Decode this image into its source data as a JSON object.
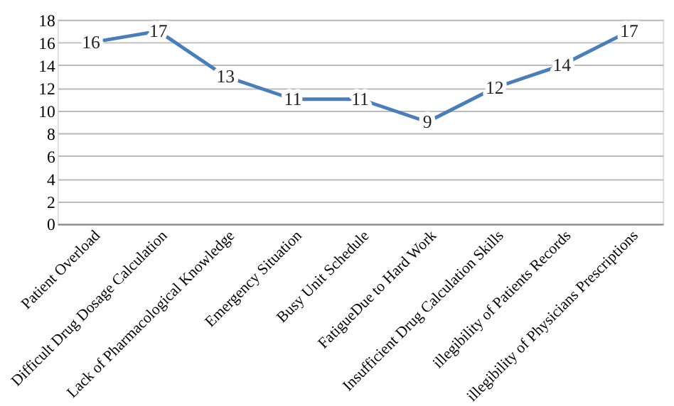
{
  "chart_data": {
    "type": "line",
    "categories": [
      "Patient Overload",
      "Difficult Drug Dosage Calculation",
      "Lack of Pharmacological Knowledge",
      "Emergency Situation",
      "Busy Unit Schedule",
      "FatigueDue to Hard Work",
      "Insufficient Drug Calculation Skills",
      "illegibility of Patients Records",
      "illegibility of Physicians Prescriptions"
    ],
    "series": [
      {
        "color": "#4a7ebb",
        "values": [
          16,
          17,
          13,
          11,
          11,
          9,
          12,
          14,
          17
        ]
      }
    ],
    "ylim": [
      0,
      18
    ],
    "yticks": [
      0,
      2,
      4,
      6,
      8,
      10,
      12,
      14,
      16,
      18
    ],
    "grid": "y",
    "data_labels": true,
    "legend": false,
    "marker": "none",
    "line_style": "solid"
  }
}
